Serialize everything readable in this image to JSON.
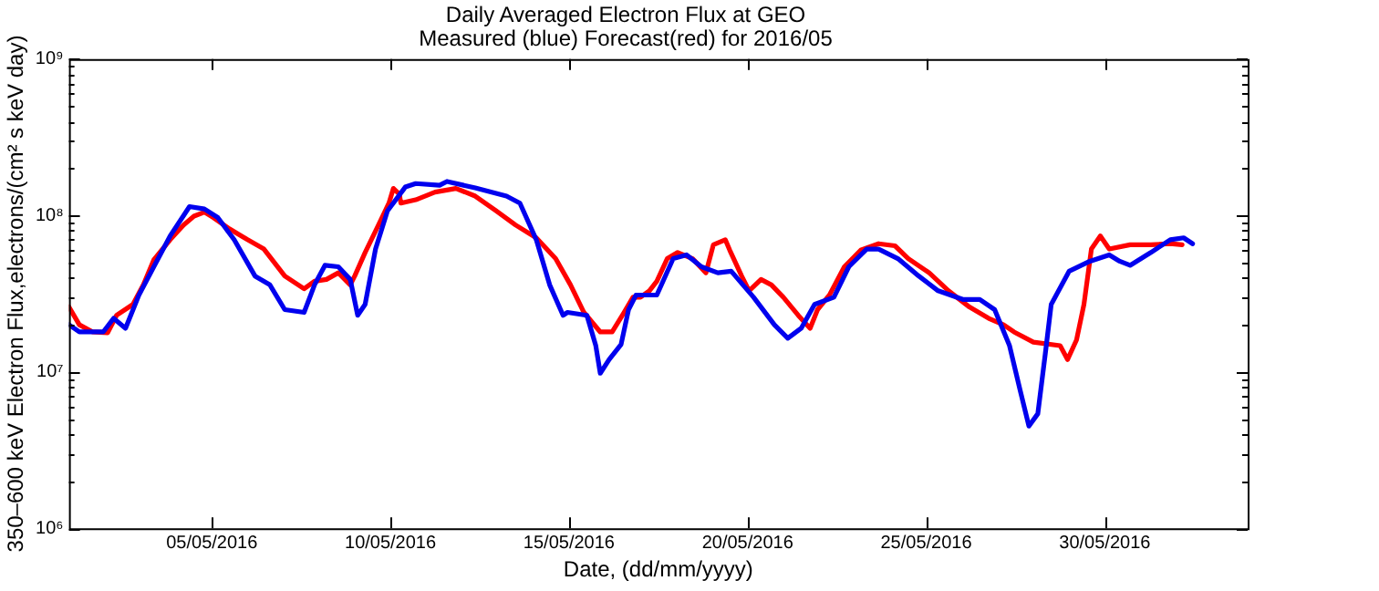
{
  "chart_data": {
    "type": "line",
    "title": "Daily Averaged Electron Flux at GEO",
    "subtitle": "Measured (blue) Forecast(red) for 2016/05",
    "xlabel": "Date, (dd/mm/yyyy)",
    "ylabel": "350–600 keV Electron Flux,electrons/(cm² s keV day)",
    "log": "y",
    "grid": false,
    "legend": false,
    "line_style": "solid",
    "marker": "none",
    "xlim": [
      "2016-05-01",
      "2016-06-03"
    ],
    "xticks": [
      {
        "value": "2016-05-05",
        "label": "05/05/2016"
      },
      {
        "value": "2016-05-10",
        "label": "10/05/2016"
      },
      {
        "value": "2016-05-15",
        "label": "15/05/2016"
      },
      {
        "value": "2016-05-20",
        "label": "20/05/2016"
      },
      {
        "value": "2016-05-25",
        "label": "25/05/2016"
      },
      {
        "value": "2016-05-30",
        "label": "30/05/2016"
      }
    ],
    "ylim": [
      1000000,
      1000000000
    ],
    "yticks": [
      {
        "value": 1000000,
        "label": "10⁶"
      },
      {
        "value": 2000000,
        "label": null
      },
      {
        "value": 3000000,
        "label": null
      },
      {
        "value": 4000000,
        "label": null
      },
      {
        "value": 5000000,
        "label": null
      },
      {
        "value": 6000000,
        "label": null
      },
      {
        "value": 7000000,
        "label": null
      },
      {
        "value": 8000000,
        "label": null
      },
      {
        "value": 9000000,
        "label": null
      },
      {
        "value": 10000000,
        "label": "10⁷"
      },
      {
        "value": 20000000,
        "label": null
      },
      {
        "value": 30000000,
        "label": null
      },
      {
        "value": 40000000,
        "label": null
      },
      {
        "value": 50000000,
        "label": null
      },
      {
        "value": 60000000,
        "label": null
      },
      {
        "value": 70000000,
        "label": null
      },
      {
        "value": 80000000,
        "label": null
      },
      {
        "value": 90000000,
        "label": null
      },
      {
        "value": 100000000,
        "label": "10⁸"
      },
      {
        "value": 200000000,
        "label": null
      },
      {
        "value": 300000000,
        "label": null
      },
      {
        "value": 400000000,
        "label": null
      },
      {
        "value": 500000000,
        "label": null
      },
      {
        "value": 600000000,
        "label": null
      },
      {
        "value": 700000000,
        "label": null
      },
      {
        "value": 800000000,
        "label": null
      },
      {
        "value": 900000000,
        "label": null
      },
      {
        "value": 1000000000,
        "label": "10⁹"
      }
    ],
    "series": [
      {
        "color": "#0000ee",
        "x": [
          "2016-05-01T00:00",
          "2016-05-01T07:00",
          "2016-05-01T23:00",
          "2016-05-02T06:00",
          "2016-05-02T14:00",
          "2016-05-02T23:00",
          "2016-05-03T09:00",
          "2016-05-03T20:00",
          "2016-05-04T09:00",
          "2016-05-04T19:00",
          "2016-05-05T04:00",
          "2016-05-05T15:00",
          "2016-05-06T05:00",
          "2016-05-06T15:00",
          "2016-05-07T01:00",
          "2016-05-07T14:00",
          "2016-05-07T21:00",
          "2016-05-08T04:00",
          "2016-05-08T13:00",
          "2016-05-08T21:00",
          "2016-05-09T02:00",
          "2016-05-09T07:00",
          "2016-05-09T14:00",
          "2016-05-09T22:00",
          "2016-05-10T10:00",
          "2016-05-10T17:00",
          "2016-05-11T09:00",
          "2016-05-11T14:00",
          "2016-05-12T09:00",
          "2016-05-13T06:00",
          "2016-05-13T15:00",
          "2016-05-14T02:00",
          "2016-05-14T11:00",
          "2016-05-14T20:00",
          "2016-05-14T23:00",
          "2016-05-15T12:00",
          "2016-05-15T18:00",
          "2016-05-15T21:00",
          "2016-05-16T03:00",
          "2016-05-16T11:00",
          "2016-05-16T16:00",
          "2016-05-16T21:00",
          "2016-05-17T11:00",
          "2016-05-17T22:00",
          "2016-05-18T07:00",
          "2016-05-18T17:00",
          "2016-05-19T04:00",
          "2016-05-19T13:00",
          "2016-05-20T04:00",
          "2016-05-20T18:00",
          "2016-05-21T03:00",
          "2016-05-21T12:00",
          "2016-05-21T21:00",
          "2016-05-22T10:00",
          "2016-05-22T20:00",
          "2016-05-23T08:00",
          "2016-05-23T16:00",
          "2016-05-24T05:00",
          "2016-05-24T19:00",
          "2016-05-25T08:00",
          "2016-05-26T01:00",
          "2016-05-26T12:00",
          "2016-05-26T22:00",
          "2016-05-27T08:00",
          "2016-05-27T15:00",
          "2016-05-27T21:00",
          "2016-05-28T03:00",
          "2016-05-28T08:00",
          "2016-05-28T12:00",
          "2016-05-29T00:00",
          "2016-05-29T14:00",
          "2016-05-30T03:00",
          "2016-05-30T10:00",
          "2016-05-30T17:00",
          "2016-05-31T07:00",
          "2016-05-31T20:00",
          "2016-06-01T05:00",
          "2016-06-01T11:00"
        ],
        "values": [
          20000000,
          18000000,
          18000000,
          22000000,
          19000000,
          31000000,
          47000000,
          74000000,
          114000000,
          110000000,
          97000000,
          70000000,
          41000000,
          36000000,
          25000000,
          24000000,
          36000000,
          48000000,
          47000000,
          39000000,
          23000000,
          27000000,
          61000000,
          107000000,
          152000000,
          160000000,
          156000000,
          165000000,
          150000000,
          133000000,
          120000000,
          70000000,
          36000000,
          23000000,
          24000000,
          23000000,
          14700000,
          9800000,
          12000000,
          15000000,
          25000000,
          31000000,
          31000000,
          53000000,
          56000000,
          47000000,
          43000000,
          44000000,
          30000000,
          20000000,
          16400000,
          19000000,
          27000000,
          30000000,
          47000000,
          61000000,
          61000000,
          53000000,
          41000000,
          33000000,
          29000000,
          29000000,
          25000000,
          14700000,
          7700000,
          4500000,
          5400000,
          13000000,
          27000000,
          44000000,
          51000000,
          56000000,
          51000000,
          48000000,
          58000000,
          70000000,
          72000000,
          66000000
        ]
      },
      {
        "color": "#ff0000",
        "x": [
          "2016-05-01T00:00",
          "2016-05-01T07:00",
          "2016-05-01T16:00",
          "2016-05-02T02:00",
          "2016-05-02T08:00",
          "2016-05-02T19:00",
          "2016-05-03T02:00",
          "2016-05-03T09:00",
          "2016-05-03T20:00",
          "2016-05-04T05:00",
          "2016-05-04T12:00",
          "2016-05-04T19:00",
          "2016-05-05T01:00",
          "2016-05-05T12:00",
          "2016-05-06T00:00",
          "2016-05-06T11:00",
          "2016-05-07T01:00",
          "2016-05-07T14:00",
          "2016-05-07T21:00",
          "2016-05-08T05:00",
          "2016-05-08T13:00",
          "2016-05-08T21:00",
          "2016-05-09T00:00",
          "2016-05-09T07:00",
          "2016-05-09T16:00",
          "2016-05-09T23:00",
          "2016-05-10T02:00",
          "2016-05-10T06:00",
          "2016-05-10T07:00",
          "2016-05-10T17:00",
          "2016-05-11T06:00",
          "2016-05-11T20:00",
          "2016-05-12T09:00",
          "2016-05-12T23:00",
          "2016-05-13T12:00",
          "2016-05-14T02:00",
          "2016-05-14T15:00",
          "2016-05-15T01:00",
          "2016-05-15T10:00",
          "2016-05-15T21:00",
          "2016-05-16T05:00",
          "2016-05-16T13:00",
          "2016-05-16T19:00",
          "2016-05-17T00:00",
          "2016-05-17T06:00",
          "2016-05-17T11:00",
          "2016-05-17T18:00",
          "2016-05-18T01:00",
          "2016-05-18T11:00",
          "2016-05-18T20:00",
          "2016-05-19T01:00",
          "2016-05-19T09:00",
          "2016-05-19T12:00",
          "2016-05-19T20:00",
          "2016-05-20T01:00",
          "2016-05-20T09:00",
          "2016-05-20T16:00",
          "2016-05-21T00:00",
          "2016-05-21T10:00",
          "2016-05-21T18:00",
          "2016-05-21T23:00",
          "2016-05-22T07:00",
          "2016-05-22T17:00",
          "2016-05-23T04:00",
          "2016-05-23T16:00",
          "2016-05-24T03:00",
          "2016-05-24T12:00",
          "2016-05-25T02:00",
          "2016-05-25T15:00",
          "2016-05-26T05:00",
          "2016-05-26T18:00",
          "2016-05-27T04:00",
          "2016-05-27T11:00",
          "2016-05-28T00:00",
          "2016-05-28T18:00",
          "2016-05-28T23:00",
          "2016-05-29T05:00",
          "2016-05-29T10:00",
          "2016-05-29T15:00",
          "2016-05-29T21:00",
          "2016-05-30T03:00",
          "2016-05-30T17:00",
          "2016-05-31T07:00",
          "2016-05-31T20:00",
          "2016-06-01T04:00"
        ],
        "values": [
          26000000,
          20000000,
          18000000,
          17800000,
          23000000,
          27000000,
          36000000,
          52000000,
          70000000,
          87000000,
          99000000,
          105000000,
          97000000,
          82000000,
          70000000,
          61000000,
          41000000,
          34000000,
          38000000,
          39000000,
          43000000,
          36000000,
          41000000,
          58000000,
          87000000,
          120000000,
          149000000,
          137000000,
          120000000,
          126000000,
          141000000,
          149000000,
          133000000,
          107000000,
          87000000,
          72000000,
          53000000,
          36000000,
          24000000,
          18000000,
          18000000,
          24000000,
          30000000,
          30000000,
          33000000,
          38000000,
          53000000,
          58000000,
          53000000,
          43000000,
          65000000,
          70000000,
          60000000,
          41000000,
          33000000,
          39000000,
          36000000,
          30000000,
          23000000,
          19000000,
          25000000,
          31000000,
          47000000,
          60000000,
          66000000,
          64000000,
          53000000,
          43000000,
          33000000,
          26000000,
          22000000,
          20000000,
          18000000,
          15500000,
          14700000,
          12000000,
          16000000,
          27000000,
          61000000,
          74000000,
          61000000,
          65000000,
          65000000,
          66000000,
          65000000
        ]
      }
    ]
  }
}
